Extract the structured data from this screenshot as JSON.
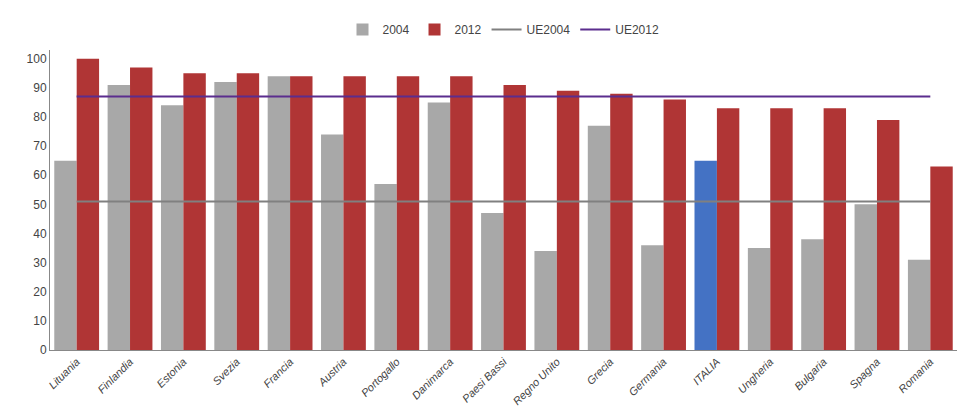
{
  "chart_data": {
    "type": "bar",
    "categories": [
      "Lituania",
      "Finlandia",
      "Estonia",
      "Svezia",
      "Francia",
      "Austria",
      "Portogallo",
      "Danimarca",
      "Paesi Bassi",
      "Regno Unito",
      "Grecia",
      "Germania",
      "ITALIA",
      "Ungheria",
      "Bulgaria",
      "Spagna",
      "Romania"
    ],
    "series": [
      {
        "name": "2004",
        "type": "bar",
        "colors": [
          "#a8a8a8",
          "#a8a8a8",
          "#a8a8a8",
          "#a8a8a8",
          "#a8a8a8",
          "#a8a8a8",
          "#a8a8a8",
          "#a8a8a8",
          "#a8a8a8",
          "#a8a8a8",
          "#a8a8a8",
          "#a8a8a8",
          "#4472c4",
          "#a8a8a8",
          "#a8a8a8",
          "#a8a8a8",
          "#a8a8a8"
        ],
        "values": [
          65,
          91,
          84,
          92,
          94,
          74,
          57,
          85,
          47,
          34,
          77,
          36,
          65,
          35,
          38,
          50,
          31
        ]
      },
      {
        "name": "2012",
        "type": "bar",
        "color": "#b03535",
        "values": [
          100,
          97,
          95,
          95,
          94,
          94,
          94,
          94,
          91,
          89,
          88,
          86,
          83,
          83,
          83,
          79,
          63
        ]
      },
      {
        "name": "UE2004",
        "type": "line",
        "color": "#808080",
        "values": [
          51,
          51,
          51,
          51,
          51,
          51,
          51,
          51,
          51,
          51,
          51,
          51,
          51,
          51,
          51,
          51,
          51
        ]
      },
      {
        "name": "UE2012",
        "type": "line",
        "color": "#5b2d8e",
        "values": [
          87,
          87,
          87,
          87,
          87,
          87,
          87,
          87,
          87,
          87,
          87,
          87,
          87,
          87,
          87,
          87,
          87
        ]
      }
    ],
    "ylim": [
      0,
      103
    ],
    "yticks": [
      0,
      10,
      20,
      30,
      40,
      50,
      60,
      70,
      80,
      90,
      100
    ],
    "grid": false,
    "legend": "top"
  }
}
